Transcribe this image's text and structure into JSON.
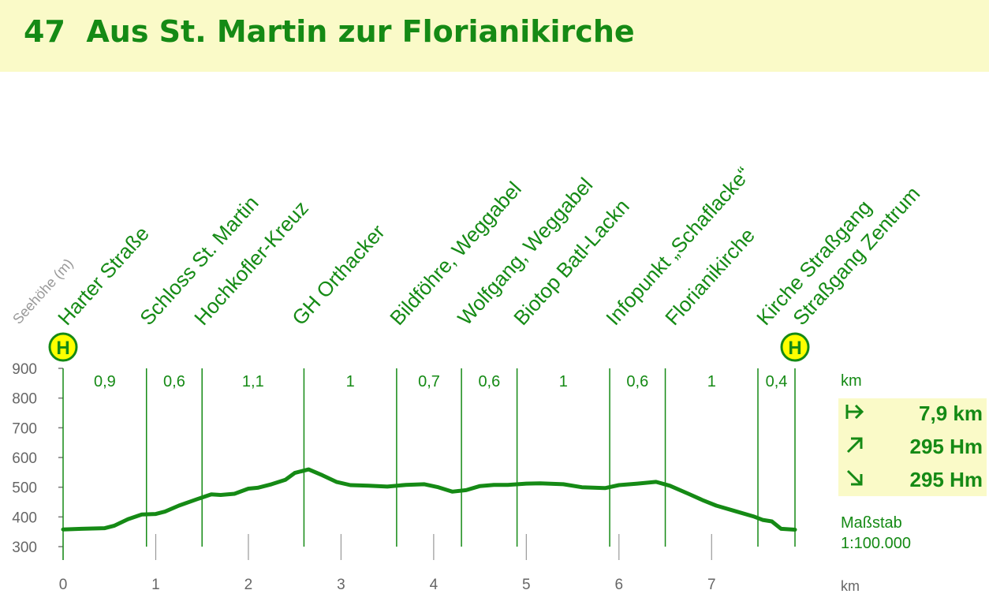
{
  "title": {
    "number": "47",
    "text": "Aus St. Martin zur Florianikirche"
  },
  "legend_km_label": "km",
  "stats": {
    "distance": "7,9 km",
    "ascent": "295 Hm",
    "descent": "295 Hm"
  },
  "scale": {
    "label": "Maßstab",
    "value": "1:100.000"
  },
  "x_unit": "km",
  "colors": {
    "accent": "#158a15",
    "band": "#fafac8",
    "bus_stop": "#ffff00"
  },
  "icons": {
    "bus_stop": "H",
    "distance": "arrow-right-icon",
    "ascent": "arrow-up-right-icon",
    "descent": "arrow-down-right-icon"
  },
  "chart_data": {
    "type": "line",
    "ylabel": "Seehöhe (m)",
    "xlabel": "km",
    "xlim": [
      0,
      7.9
    ],
    "ylim": [
      300,
      900
    ],
    "x_ticks": [
      "0",
      "1",
      "2",
      "3",
      "4",
      "5",
      "6",
      "7"
    ],
    "y_ticks": [
      "300",
      "400",
      "500",
      "600",
      "700",
      "800",
      "900"
    ],
    "grid": "vertical segment dividers at waypoints",
    "waypoints": [
      {
        "name": "Harter Straße",
        "km": 0
      },
      {
        "name": "Schloss St. Martin",
        "km": 0.9
      },
      {
        "name": "Hochkofler-Kreuz",
        "km": 1.5
      },
      {
        "name": "GH Orthacker",
        "km": 2.6
      },
      {
        "name": "Bildföhre, Weggabel",
        "km": 3.6
      },
      {
        "name": "Wolfgang, Weggabel",
        "km": 4.3
      },
      {
        "name": "Biotop Batl-Lackn",
        "km": 4.9
      },
      {
        "name": "Infopunkt „Schaflacke“",
        "km": 5.9
      },
      {
        "name": "Florianikirche",
        "km": 6.5
      },
      {
        "name": "Kirche Straßgang",
        "km": 7.5
      },
      {
        "name": "Straßgang Zentrum",
        "km": 7.9
      }
    ],
    "bus_stops_km": [
      0,
      7.9
    ],
    "segment_labels": [
      "0,9",
      "0,6",
      "1,1",
      "1",
      "0,7",
      "0,6",
      "1",
      "0,6",
      "1",
      "0,4"
    ],
    "series": [
      {
        "x": [
          0,
          0.2,
          0.45,
          0.55,
          0.7,
          0.85,
          1.0,
          1.1,
          1.25,
          1.45,
          1.6,
          1.7,
          1.85,
          2.0,
          2.1,
          2.25,
          2.4,
          2.5,
          2.65,
          2.8,
          2.95,
          3.1,
          3.3,
          3.5,
          3.7,
          3.9,
          4.05,
          4.2,
          4.35,
          4.5,
          4.65,
          4.8,
          5.0,
          5.15,
          5.4,
          5.6,
          5.85,
          6.0,
          6.2,
          6.4,
          6.55,
          6.75,
          6.9,
          7.05,
          7.25,
          7.45,
          7.55,
          7.65,
          7.75,
          7.9
        ],
        "y": [
          358,
          360,
          362,
          370,
          392,
          408,
          410,
          418,
          438,
          460,
          476,
          474,
          478,
          495,
          498,
          510,
          525,
          548,
          560,
          540,
          518,
          507,
          505,
          502,
          508,
          510,
          500,
          485,
          490,
          504,
          508,
          508,
          512,
          513,
          510,
          500,
          497,
          507,
          512,
          518,
          505,
          478,
          457,
          438,
          420,
          402,
          390,
          385,
          360,
          357
        ]
      }
    ]
  }
}
